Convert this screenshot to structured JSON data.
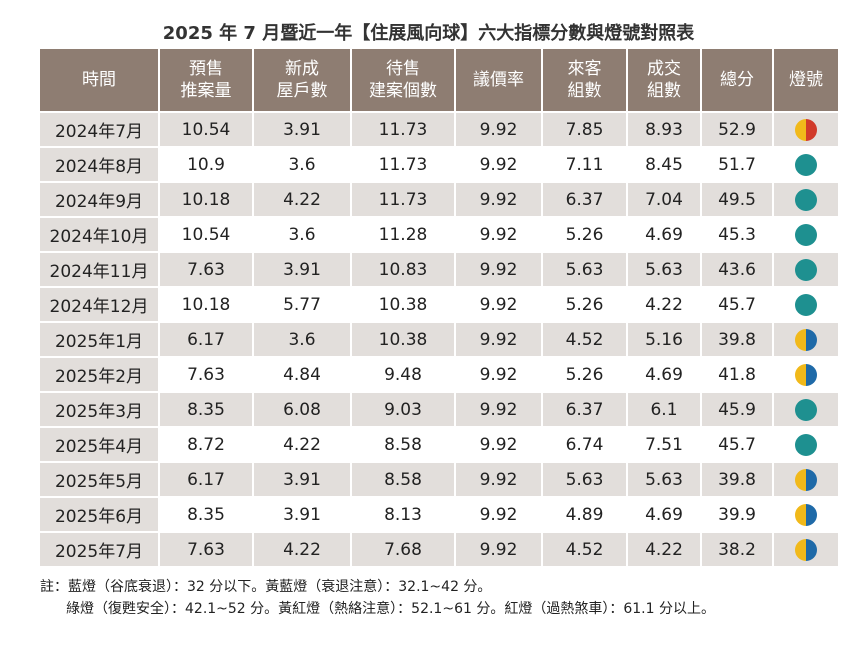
{
  "title": "2025 年 7 月暨近一年【住展風向球】六大指標分數與燈號對照表",
  "table": {
    "headers": [
      "時間",
      "預售\n推案量",
      "新成\n屋戶數",
      "待售\n建案個數",
      "議價率",
      "來客\n組數",
      "成交\n組數",
      "總分",
      "燈號"
    ],
    "rows": [
      [
        "2024年7月",
        10.54,
        3.91,
        11.73,
        9.92,
        7.85,
        8.93,
        52.9
      ],
      [
        "2024年8月",
        10.9,
        3.6,
        11.73,
        9.92,
        7.11,
        8.45,
        51.7
      ],
      [
        "2024年9月",
        10.18,
        4.22,
        11.73,
        9.92,
        6.37,
        7.04,
        49.5
      ],
      [
        "2024年10月",
        10.54,
        3.6,
        11.28,
        9.92,
        5.26,
        4.69,
        45.3
      ],
      [
        "2024年11月",
        7.63,
        3.91,
        10.83,
        9.92,
        5.63,
        5.63,
        43.6
      ],
      [
        "2024年12月",
        10.18,
        5.77,
        10.38,
        9.92,
        5.26,
        4.22,
        45.7
      ],
      [
        "2025年1月",
        6.17,
        3.6,
        10.38,
        9.92,
        4.52,
        5.16,
        39.8
      ],
      [
        "2025年2月",
        7.63,
        4.84,
        9.48,
        9.92,
        5.26,
        4.69,
        41.8
      ],
      [
        "2025年3月",
        8.35,
        6.08,
        9.03,
        9.92,
        6.37,
        6.1,
        45.9
      ],
      [
        "2025年4月",
        8.72,
        4.22,
        8.58,
        9.92,
        6.74,
        7.51,
        45.7
      ],
      [
        "2025年5月",
        6.17,
        3.91,
        8.58,
        9.92,
        5.63,
        5.63,
        39.8
      ],
      [
        "2025年6月",
        8.35,
        3.91,
        8.13,
        9.92,
        4.89,
        4.69,
        39.9
      ],
      [
        "2025年7月",
        7.63,
        4.22,
        7.68,
        9.92,
        4.52,
        4.22,
        38.2
      ]
    ],
    "light_colors": [
      [
        "#f1b91a",
        "#d13a2a"
      ],
      [
        "#1e9090"
      ],
      [
        "#1e9090"
      ],
      [
        "#1e9090"
      ],
      [
        "#1e9090"
      ],
      [
        "#1e9090"
      ],
      [
        "#f1b91a",
        "#1f6aa8"
      ],
      [
        "#f1b91a",
        "#1f6aa8"
      ],
      [
        "#1e9090"
      ],
      [
        "#1e9090"
      ],
      [
        "#f1b91a",
        "#1f6aa8"
      ],
      [
        "#f1b91a",
        "#1f6aa8"
      ],
      [
        "#f1b91a",
        "#1f6aa8"
      ]
    ]
  },
  "notes": [
    "註：藍燈（谷底衰退）：32 分以下。黃藍燈（衰退注意）：32.1~42 分。",
    "綠燈（復甦安全）：42.1~52 分。黃紅燈（熱絡注意）：52.1~61 分。紅燈（過熱煞車）：61.1 分以上。"
  ]
}
